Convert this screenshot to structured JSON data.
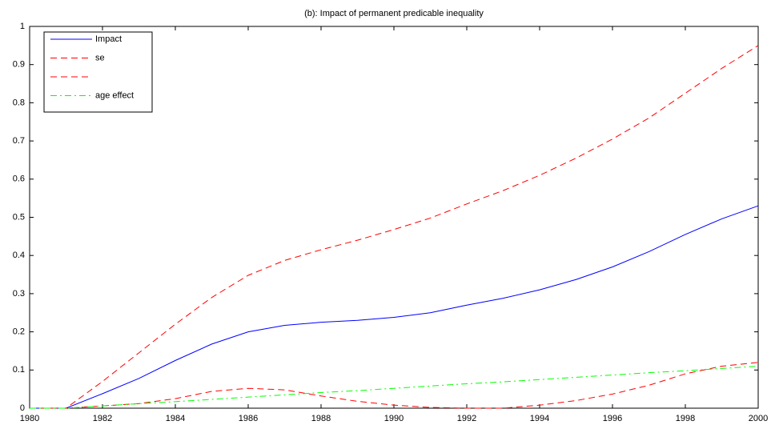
{
  "chart_data": {
    "type": "line",
    "title": "(b): Impact of permanent predicable inequality",
    "x": [
      1980,
      1981,
      1982,
      1983,
      1984,
      1985,
      1986,
      1987,
      1988,
      1989,
      1990,
      1991,
      1992,
      1993,
      1994,
      1995,
      1996,
      1997,
      1998,
      1999,
      2000
    ],
    "series": [
      {
        "name": "Impact",
        "color": "#0000ff",
        "style": "solid",
        "values": [
          0,
          0,
          0.038,
          0.078,
          0.125,
          0.168,
          0.2,
          0.217,
          0.225,
          0.23,
          0.238,
          0.25,
          0.27,
          0.288,
          0.31,
          0.337,
          0.37,
          0.41,
          0.455,
          0.496,
          0.53
        ]
      },
      {
        "name": "se",
        "color": "#ff0000",
        "style": "dashed",
        "values": [
          0,
          0,
          0.07,
          0.145,
          0.22,
          0.29,
          0.348,
          0.387,
          0.415,
          0.44,
          0.468,
          0.498,
          0.535,
          0.57,
          0.61,
          0.655,
          0.705,
          0.76,
          0.825,
          0.89,
          0.95
        ]
      },
      {
        "color": "#ff0000",
        "style": "dashed",
        "values": [
          0,
          0,
          0.006,
          0.012,
          0.025,
          0.044,
          0.052,
          0.048,
          0.032,
          0.018,
          0.008,
          0.002,
          0,
          0,
          0.008,
          0.02,
          0.037,
          0.06,
          0.09,
          0.11,
          0.12
        ]
      },
      {
        "name": "age effect",
        "color": "#00ff00",
        "style": "dashdot",
        "values": [
          0,
          0,
          0.006,
          0.012,
          0.017,
          0.023,
          0.029,
          0.035,
          0.041,
          0.046,
          0.052,
          0.058,
          0.064,
          0.069,
          0.075,
          0.081,
          0.087,
          0.093,
          0.098,
          0.104,
          0.11
        ]
      }
    ],
    "xlim": [
      1980,
      2000
    ],
    "xticks": [
      1980,
      1982,
      1984,
      1986,
      1988,
      1990,
      1992,
      1994,
      1996,
      1998,
      2000
    ],
    "ylim": [
      0,
      1
    ],
    "yticks": [
      0,
      0.1,
      0.2,
      0.3,
      0.4,
      0.5,
      0.6,
      0.7,
      0.8,
      0.9,
      1
    ],
    "grid": false,
    "legend": "upper left"
  }
}
